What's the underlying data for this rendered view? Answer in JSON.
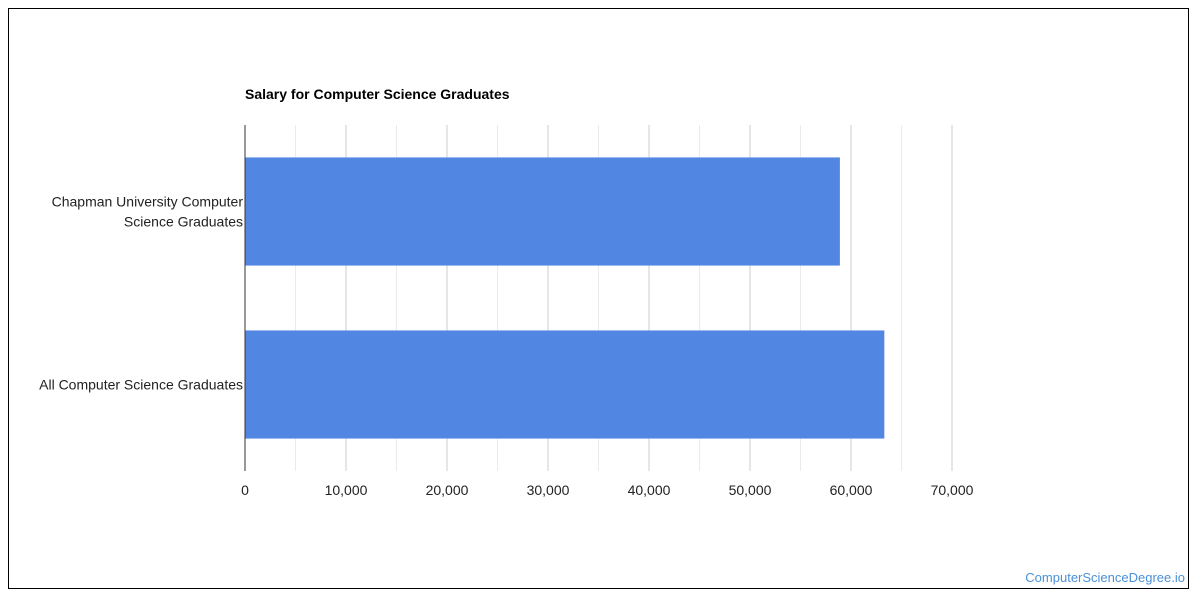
{
  "chart_data": {
    "type": "bar",
    "orientation": "horizontal",
    "title": "Salary for Computer Science Graduates",
    "categories": [
      "Chapman University Computer Science Graduates",
      "All Computer Science Graduates"
    ],
    "category_lines": [
      [
        "Chapman University Computer",
        "Science Graduates"
      ],
      [
        "All Computer Science Graduates"
      ]
    ],
    "values": [
      58900,
      63300
    ],
    "xlim": [
      0,
      70000
    ],
    "x_ticks": [
      0,
      10000,
      20000,
      30000,
      40000,
      50000,
      60000,
      70000
    ],
    "x_tick_labels": [
      "0",
      "10,000",
      "20,000",
      "30,000",
      "40,000",
      "50,000",
      "60,000",
      "70,000"
    ],
    "grid": true,
    "legend": "none"
  },
  "colors": {
    "bar": "#5286e3",
    "grid_major": "#cccccc",
    "grid_minor": "#ebebeb",
    "axis": "#333333",
    "text": "#222222",
    "link": "#4a90d9"
  },
  "footer": {
    "credit_text": "ComputerScienceDegree.io"
  }
}
